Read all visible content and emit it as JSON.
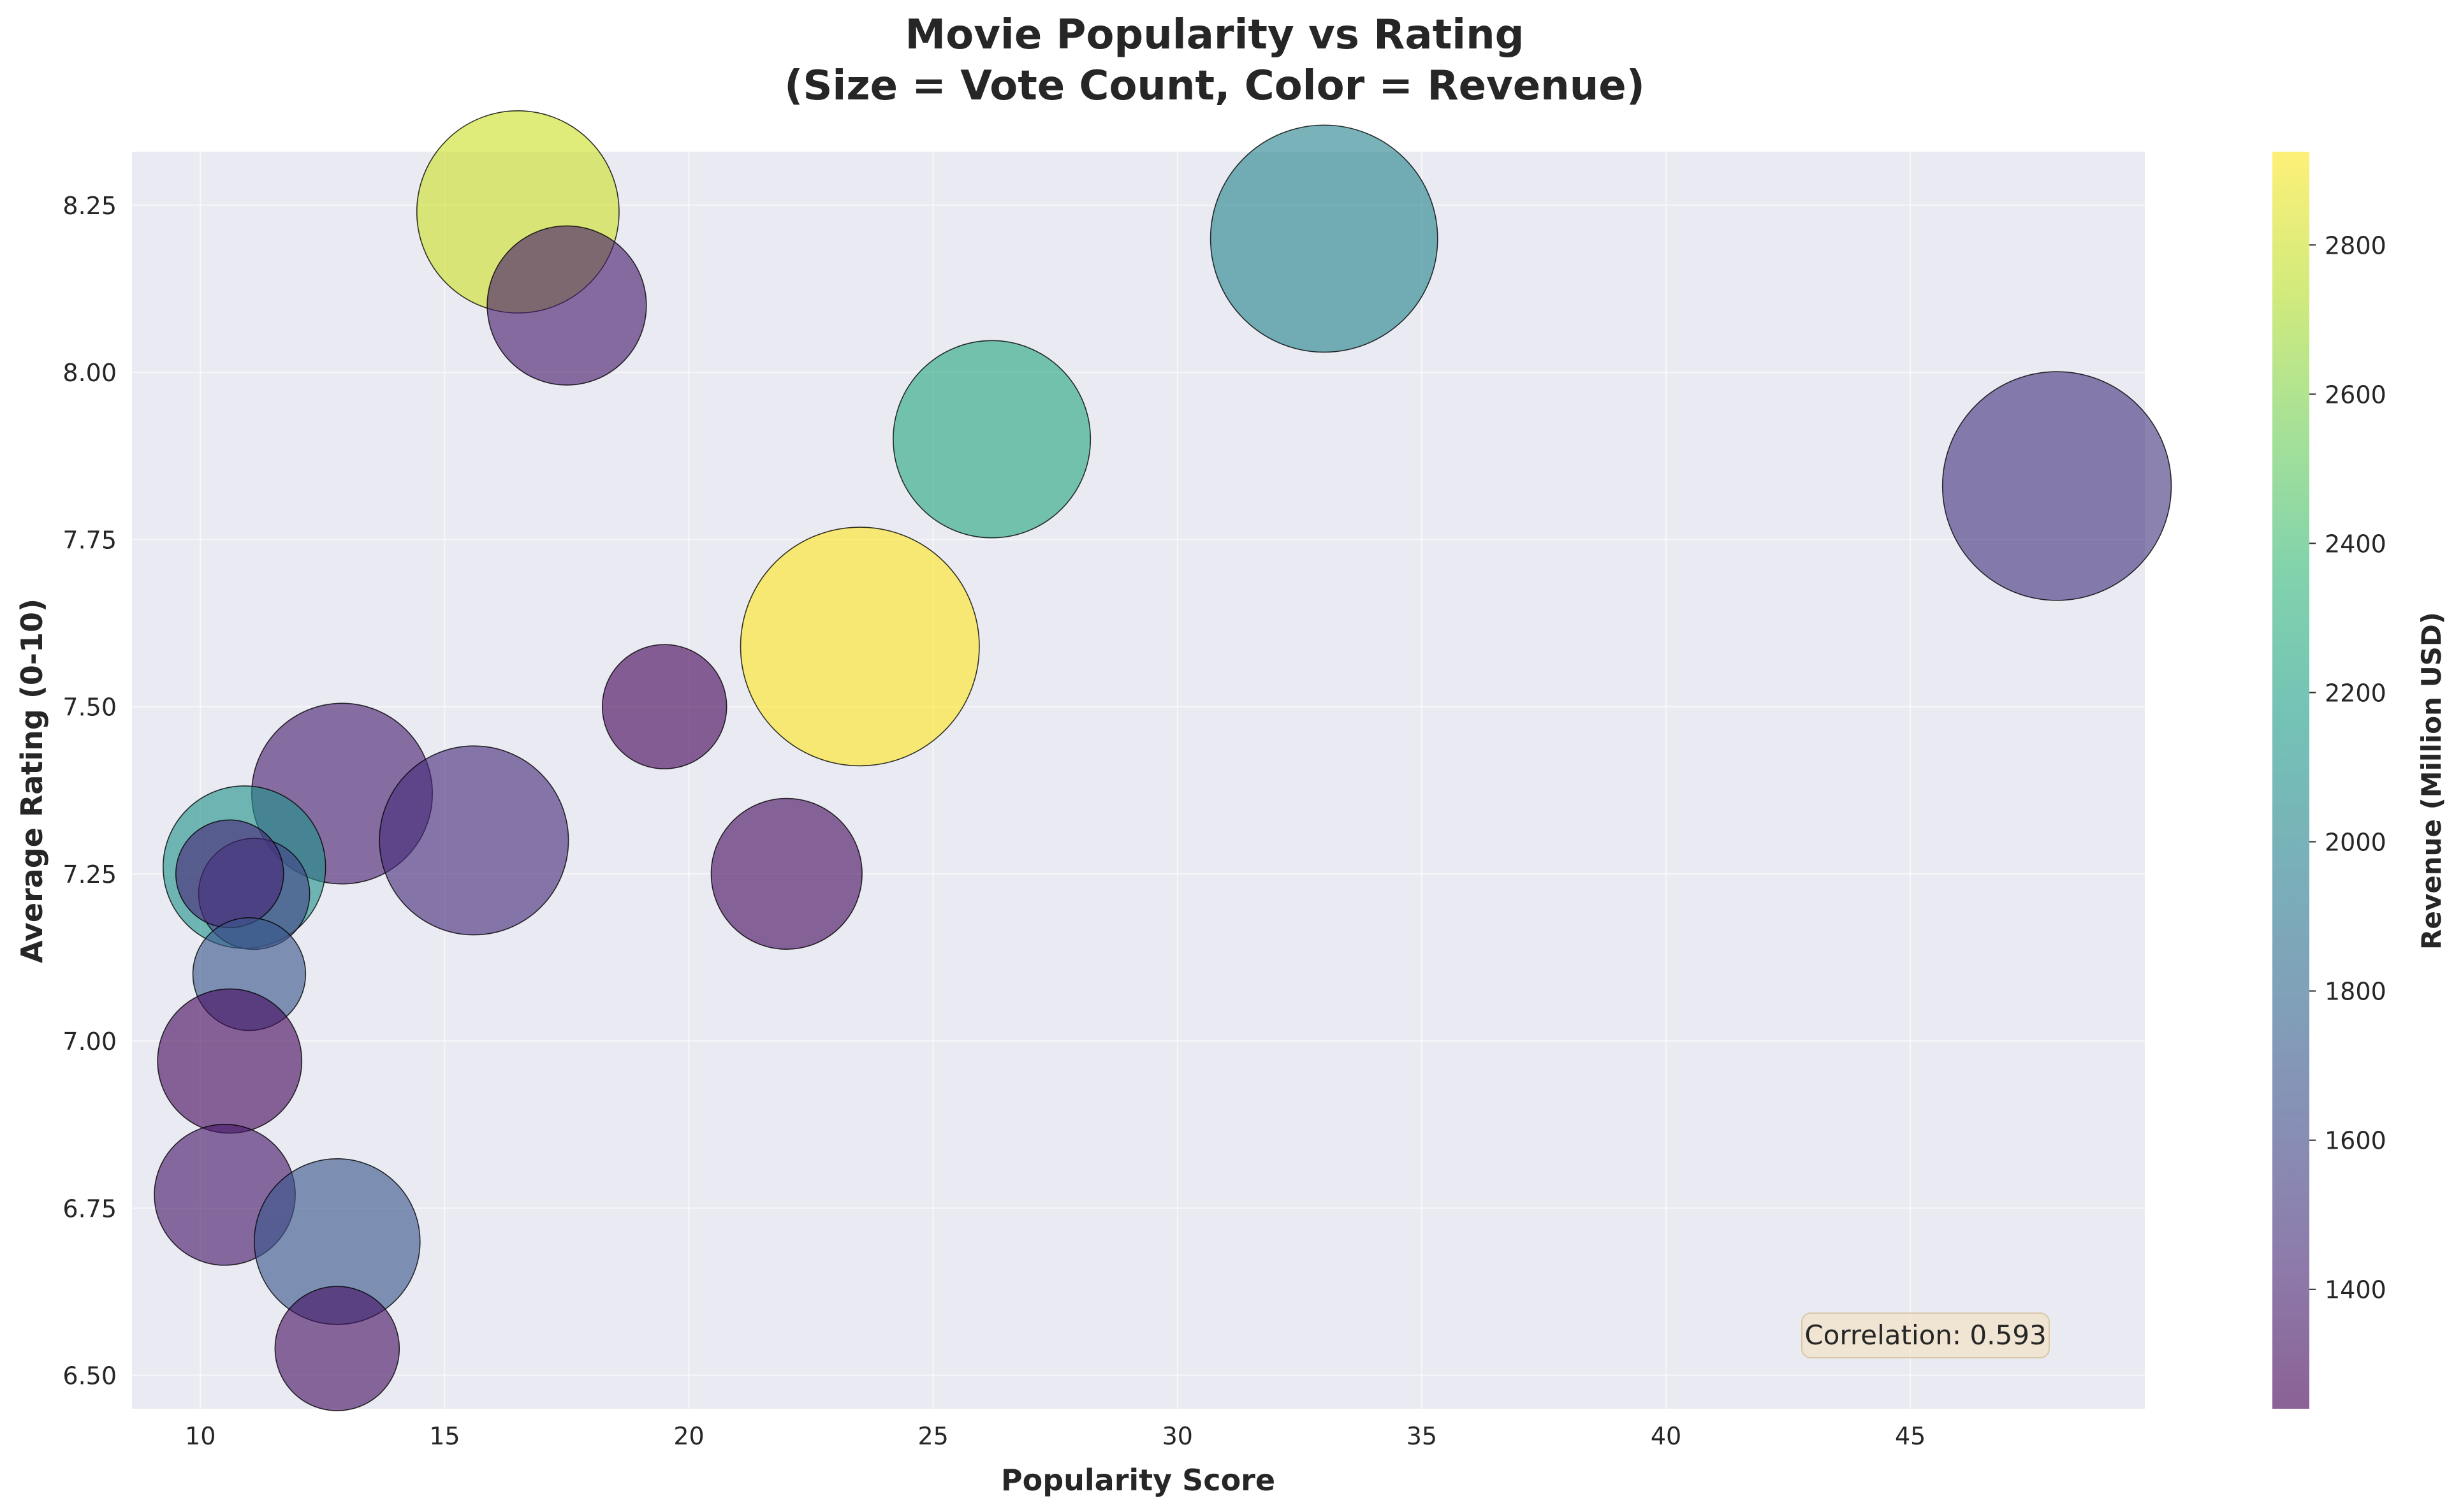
{
  "chart_data": {
    "type": "scatter",
    "title_lines": [
      "Movie Popularity vs Rating",
      "(Size = Vote Count, Color = Revenue)"
    ],
    "xlabel": "Popularity Score",
    "ylabel": "Average Rating (0-10)",
    "xlim": [
      8.6,
      49.8
    ],
    "ylim": [
      6.45,
      8.33
    ],
    "x_ticks": [
      10,
      15,
      20,
      25,
      30,
      35,
      40,
      45
    ],
    "y_ticks": [
      6.5,
      6.75,
      7.0,
      7.25,
      7.5,
      7.75,
      8.0,
      8.25
    ],
    "y_tick_labels": [
      "6.50",
      "6.75",
      "7.00",
      "7.25",
      "7.50",
      "7.75",
      "8.00",
      "8.25"
    ],
    "grid": true,
    "annotation": "Correlation: 0.593",
    "colorbar": {
      "label": "Revenue (Million USD)",
      "min": 1240,
      "max": 2925,
      "ticks": [
        1400,
        1600,
        1800,
        2000,
        2200,
        2400,
        2600,
        2800
      ],
      "colormap": "viridis"
    },
    "points": [
      {
        "x": 16.5,
        "y": 8.24,
        "revenue": 2800,
        "size_rel": 1.22
      },
      {
        "x": 17.5,
        "y": 8.1,
        "revenue": 1370,
        "size_rel": 0.96
      },
      {
        "x": 33.0,
        "y": 8.2,
        "revenue": 2000,
        "size_rel": 1.37
      },
      {
        "x": 26.2,
        "y": 7.9,
        "revenue": 2250,
        "size_rel": 1.19
      },
      {
        "x": 48.0,
        "y": 7.83,
        "revenue": 1500,
        "size_rel": 1.38
      },
      {
        "x": 23.5,
        "y": 7.59,
        "revenue": 2925,
        "size_rel": 1.44
      },
      {
        "x": 19.5,
        "y": 7.5,
        "revenue": 1260,
        "size_rel": 0.75
      },
      {
        "x": 12.9,
        "y": 7.37,
        "revenue": 1380,
        "size_rel": 1.09
      },
      {
        "x": 15.6,
        "y": 7.3,
        "revenue": 1450,
        "size_rel": 1.14
      },
      {
        "x": 22.0,
        "y": 7.25,
        "revenue": 1300,
        "size_rel": 0.91
      },
      {
        "x": 10.9,
        "y": 7.26,
        "revenue": 2100,
        "size_rel": 0.98
      },
      {
        "x": 11.1,
        "y": 7.22,
        "revenue": 1580,
        "size_rel": 0.67
      },
      {
        "x": 10.6,
        "y": 7.25,
        "revenue": 1420,
        "size_rel": 0.65
      },
      {
        "x": 11.0,
        "y": 7.1,
        "revenue": 1700,
        "size_rel": 0.68
      },
      {
        "x": 10.6,
        "y": 6.97,
        "revenue": 1290,
        "size_rel": 0.87
      },
      {
        "x": 10.5,
        "y": 6.77,
        "revenue": 1350,
        "size_rel": 0.85
      },
      {
        "x": 12.8,
        "y": 6.7,
        "revenue": 1700,
        "size_rel": 1.0
      },
      {
        "x": 12.8,
        "y": 6.54,
        "revenue": 1320,
        "size_rel": 0.75
      }
    ]
  }
}
